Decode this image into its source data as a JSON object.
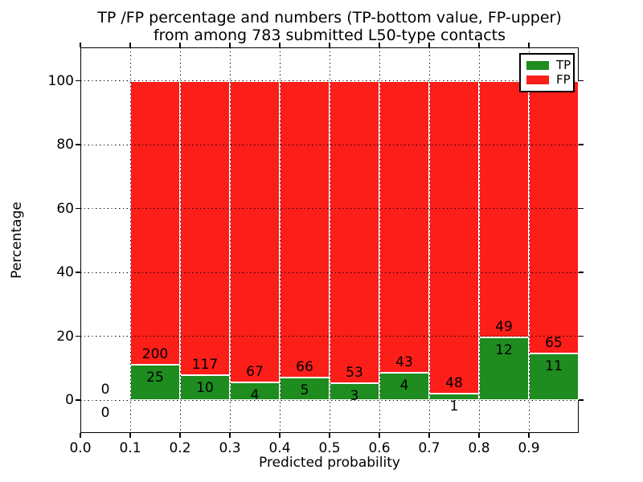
{
  "figure": {
    "title_line1": "TP /FP percentage and numbers (TP-bottom value, FP-upper)",
    "title_line2": "from among 783 submitted L50-type contacts"
  },
  "chart_data": {
    "type": "bar",
    "stacked": true,
    "orientation": "vertical",
    "title": "TP /FP percentage and numbers (TP-bottom value, FP-upper) from among 783 submitted L50-type contacts",
    "xlabel": "Predicted probability",
    "ylabel": "Percentage",
    "xlim": [
      0.0,
      1.0
    ],
    "ylim": [
      -10.5,
      110.5
    ],
    "xtick_labels": [
      "0.0",
      "0.1",
      "0.2",
      "0.3",
      "0.4",
      "0.5",
      "0.6",
      "0.7",
      "0.8",
      "0.9"
    ],
    "ytick_values": [
      0,
      20,
      40,
      60,
      80,
      100
    ],
    "grid": "dotted",
    "legend": {
      "position": "upper-right",
      "entries": [
        {
          "label": "TP",
          "color": "#1e8c1e"
        },
        {
          "label": "FP",
          "color": "#fb1e19"
        }
      ]
    },
    "total_submitted": 783,
    "bins": [
      {
        "x_start": 0.0,
        "x_end": 0.1,
        "tp_count": 0,
        "fp_count": 0,
        "tp_pct": 0,
        "fp_pct": 0
      },
      {
        "x_start": 0.1,
        "x_end": 0.2,
        "tp_count": 25,
        "fp_count": 200,
        "tp_pct": 11.11,
        "fp_pct": 88.89
      },
      {
        "x_start": 0.2,
        "x_end": 0.3,
        "tp_count": 10,
        "fp_count": 117,
        "tp_pct": 7.87,
        "fp_pct": 92.13
      },
      {
        "x_start": 0.3,
        "x_end": 0.4,
        "tp_count": 4,
        "fp_count": 67,
        "tp_pct": 5.63,
        "fp_pct": 94.37
      },
      {
        "x_start": 0.4,
        "x_end": 0.5,
        "tp_count": 5,
        "fp_count": 66,
        "tp_pct": 7.04,
        "fp_pct": 92.96
      },
      {
        "x_start": 0.5,
        "x_end": 0.6,
        "tp_count": 3,
        "fp_count": 53,
        "tp_pct": 5.36,
        "fp_pct": 94.64
      },
      {
        "x_start": 0.6,
        "x_end": 0.7,
        "tp_count": 4,
        "fp_count": 43,
        "tp_pct": 8.51,
        "fp_pct": 91.49
      },
      {
        "x_start": 0.7,
        "x_end": 0.8,
        "tp_count": 1,
        "fp_count": 48,
        "tp_pct": 2.04,
        "fp_pct": 97.96
      },
      {
        "x_start": 0.8,
        "x_end": 0.9,
        "tp_count": 12,
        "fp_count": 49,
        "tp_pct": 19.67,
        "fp_pct": 80.33
      },
      {
        "x_start": 0.9,
        "x_end": 1.0,
        "tp_count": 11,
        "fp_count": 65,
        "tp_pct": 14.47,
        "fp_pct": 85.53
      }
    ]
  },
  "colors": {
    "tp_green": "#1e8c1e",
    "fp_red": "#fb1e19",
    "grid": "#000000",
    "background": "#ffffff"
  }
}
